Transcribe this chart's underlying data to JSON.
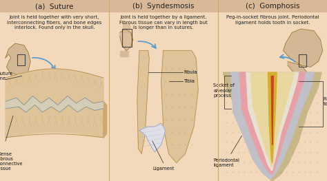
{
  "bg_color": "#f2d9bb",
  "panel_bg": "#f2d9bb",
  "header_color": "#d9b897",
  "title_color": "#222222",
  "panel_titles": [
    "(a)  Suture",
    "(b)  Syndesmosis",
    "(c)  Gomphosis"
  ],
  "panel_title_fontsize": 7.5,
  "desc_a": "Joint is held together with very short,\ninterconnecting fibers, and bone edges\ninterlock. Found only in the skull.",
  "desc_b": "Joint is held together by a ligament.\nFibrous tissue can vary in length but\nis longer than in sutures.",
  "desc_c": "Peg-in-socket fibrous joint. Periodontal\nligament holds tooth in socket.",
  "label_a": [
    "Suture\nline",
    "Dense\nfibrous\nconnective\ntissue"
  ],
  "label_b": [
    "Fibula",
    "Tibia",
    "Ligament"
  ],
  "label_c": [
    "Socket of\nalveolar\nprocess",
    "Root of\ntooth",
    "Periodontal\nligament"
  ],
  "divider_color": "#c8a870",
  "text_fontsize": 5.0,
  "label_fontsize": 4.8,
  "bone_color": "#dfc49a",
  "bone_edge": "#b08840",
  "skull_color": "#d4b896",
  "arrow_color": "#5599cc",
  "gray_bone": "#c8c8b8",
  "pink_layer": "#e8aab0",
  "white_layer": "#e8e0d8",
  "tooth_color": "#e8d8a8",
  "canal_yellow": "#c8a020",
  "canal_red": "#cc4422"
}
